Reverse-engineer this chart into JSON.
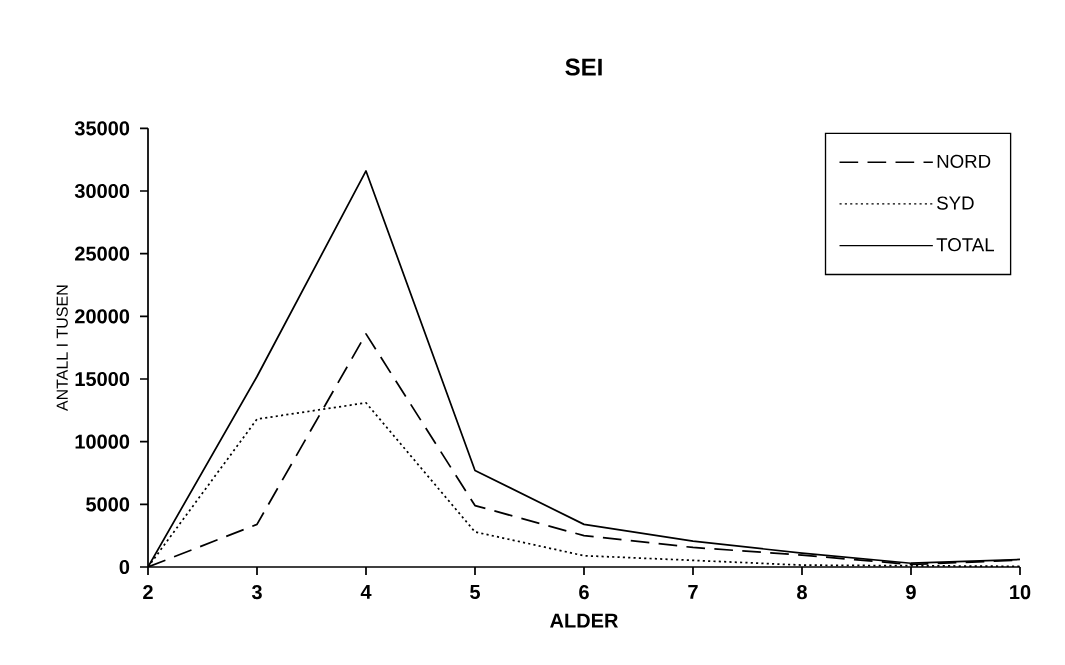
{
  "chart_data": {
    "type": "line",
    "title": "SEI",
    "xlabel": "ALDER",
    "ylabel": "ANTALL I TUSEN",
    "x": [
      2,
      3,
      4,
      5,
      6,
      7,
      8,
      9,
      10
    ],
    "series": [
      {
        "name": "NORD",
        "color": "#000000",
        "line_style": "dashed",
        "values": [
          0,
          3400,
          18600,
          4900,
          2500,
          1560,
          950,
          200,
          550
        ]
      },
      {
        "name": "SYD",
        "color": "#000000",
        "line_style": "dotted",
        "values": [
          0,
          11800,
          13100,
          2800,
          900,
          530,
          150,
          100,
          50
        ]
      },
      {
        "name": "TOTAL",
        "color": "#000000",
        "line_style": "solid",
        "values": [
          0,
          15200,
          31600,
          7700,
          3400,
          2070,
          1100,
          300,
          600
        ]
      }
    ],
    "xlim": [
      2,
      10
    ],
    "xticks": [
      2,
      3,
      4,
      5,
      6,
      7,
      8,
      9,
      10
    ],
    "ylim": [
      0,
      35000
    ],
    "yticks": [
      0,
      5000,
      10000,
      15000,
      20000,
      25000,
      30000,
      35000
    ],
    "legend": "top right",
    "marker": "none",
    "grid": false
  }
}
